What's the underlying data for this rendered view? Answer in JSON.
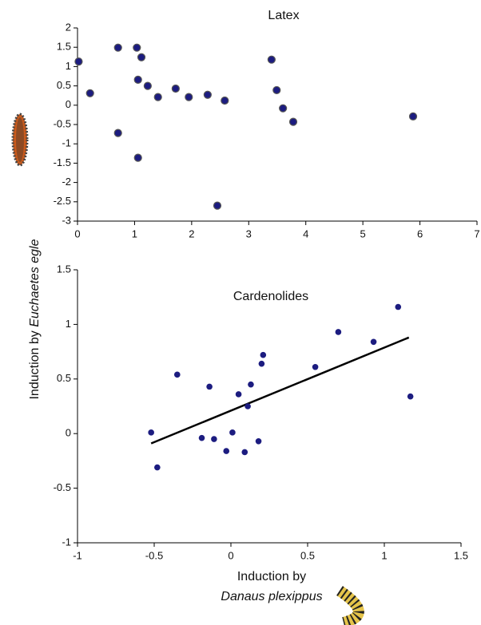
{
  "chart_data": [
    {
      "type": "scatter",
      "title": "Latex",
      "color": "#1c1c80",
      "x": [
        0.02,
        0.22,
        0.71,
        0.71,
        1.04,
        1.12,
        1.06,
        1.06,
        1.23,
        1.41,
        1.72,
        1.95,
        2.28,
        2.58,
        2.45,
        3.4,
        3.49,
        3.6,
        3.78,
        5.88
      ],
      "values": [
        1.13,
        0.31,
        1.49,
        -0.72,
        1.49,
        1.24,
        0.66,
        -1.36,
        0.5,
        0.21,
        0.43,
        0.21,
        0.27,
        0.12,
        -2.6,
        1.18,
        0.39,
        -0.08,
        -0.43,
        -0.29
      ],
      "xlim": [
        0,
        7
      ],
      "xticks": [
        0,
        1,
        2,
        3,
        4,
        5,
        6,
        7
      ],
      "ylim": [
        -3,
        2
      ],
      "yticks": [
        2,
        1.5,
        1,
        0.5,
        0,
        -0.5,
        -1,
        -1.5,
        -2,
        -2.5,
        -3
      ]
    },
    {
      "type": "scatter",
      "title": "Cardenolides",
      "color": "#1c1c80",
      "x": [
        -0.52,
        -0.48,
        -0.35,
        -0.19,
        -0.14,
        -0.11,
        -0.03,
        0.01,
        0.05,
        0.09,
        0.13,
        0.11,
        0.18,
        0.2,
        0.21,
        0.55,
        0.7,
        0.93,
        1.09,
        1.17
      ],
      "values": [
        0.01,
        -0.31,
        0.54,
        -0.04,
        0.43,
        -0.05,
        -0.16,
        0.01,
        0.36,
        -0.17,
        0.45,
        0.25,
        -0.07,
        0.64,
        0.72,
        0.61,
        0.93,
        0.84,
        1.16,
        0.34
      ],
      "fit": {
        "x": [
          -0.52,
          1.16
        ],
        "values": [
          -0.09,
          0.88
        ]
      },
      "xlim": [
        -1,
        1.5
      ],
      "xticks": [
        -1,
        -0.5,
        0,
        0.5,
        1,
        1.5
      ],
      "ylim": [
        -1,
        1.5
      ],
      "yticks": [
        1.5,
        1,
        0.5,
        0,
        -0.5,
        -1
      ],
      "xlabel": [
        "Induction by",
        "Danaus plexippus"
      ],
      "ylabel": [
        "Induction by ",
        "Euchaetes egle"
      ]
    }
  ]
}
